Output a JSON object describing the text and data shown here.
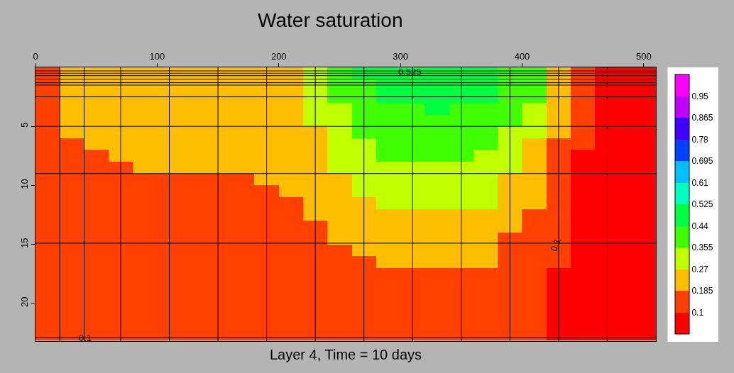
{
  "chart_data": {
    "type": "heatmap",
    "title": "Water saturation",
    "xlabel": "Layer 4, Time = 10 days",
    "x": [
      10,
      30,
      50,
      70,
      90,
      110,
      130,
      150,
      170,
      190,
      210,
      230,
      250,
      270,
      290,
      310,
      330,
      350,
      370,
      390,
      410,
      430,
      450,
      470,
      490,
      505
    ],
    "y": [
      0.5,
      1.5,
      2.5,
      3.5,
      4.5,
      5.5,
      6.5,
      7.5,
      8.5,
      9.5,
      10.5,
      11.5,
      12.5,
      13.5,
      14.5,
      15.5,
      16.5,
      17.5,
      18.5,
      19.5,
      20.5,
      21.5,
      22.6
    ],
    "cells": [
      [
        0.14,
        0.23,
        0.23,
        0.23,
        0.23,
        0.23,
        0.23,
        0.23,
        0.23,
        0.23,
        0.23,
        0.31,
        0.4,
        0.48,
        0.48,
        0.48,
        0.48,
        0.48,
        0.48,
        0.4,
        0.4,
        0.23,
        0.14,
        0.07,
        0.07,
        0.07
      ],
      [
        0.14,
        0.23,
        0.23,
        0.23,
        0.23,
        0.23,
        0.23,
        0.23,
        0.23,
        0.23,
        0.23,
        0.31,
        0.4,
        0.4,
        0.48,
        0.48,
        0.48,
        0.48,
        0.48,
        0.4,
        0.4,
        0.23,
        0.14,
        0.07,
        0.07,
        0.07
      ],
      [
        0.14,
        0.23,
        0.23,
        0.23,
        0.23,
        0.23,
        0.23,
        0.23,
        0.23,
        0.23,
        0.23,
        0.31,
        0.4,
        0.4,
        0.48,
        0.48,
        0.48,
        0.48,
        0.48,
        0.4,
        0.4,
        0.23,
        0.14,
        0.07,
        0.07,
        0.07
      ],
      [
        0.14,
        0.23,
        0.23,
        0.23,
        0.23,
        0.23,
        0.23,
        0.23,
        0.23,
        0.23,
        0.23,
        0.31,
        0.31,
        0.4,
        0.4,
        0.4,
        0.48,
        0.4,
        0.4,
        0.4,
        0.31,
        0.23,
        0.14,
        0.07,
        0.07,
        0.07
      ],
      [
        0.14,
        0.23,
        0.23,
        0.23,
        0.23,
        0.23,
        0.23,
        0.23,
        0.23,
        0.23,
        0.23,
        0.31,
        0.31,
        0.4,
        0.4,
        0.4,
        0.4,
        0.4,
        0.4,
        0.4,
        0.31,
        0.23,
        0.14,
        0.07,
        0.07,
        0.07
      ],
      [
        0.14,
        0.23,
        0.23,
        0.23,
        0.23,
        0.23,
        0.23,
        0.23,
        0.23,
        0.23,
        0.23,
        0.23,
        0.31,
        0.4,
        0.4,
        0.4,
        0.4,
        0.4,
        0.4,
        0.31,
        0.31,
        0.23,
        0.14,
        0.07,
        0.07,
        0.07
      ],
      [
        0.14,
        0.14,
        0.23,
        0.23,
        0.23,
        0.23,
        0.23,
        0.23,
        0.23,
        0.23,
        0.23,
        0.23,
        0.31,
        0.31,
        0.4,
        0.4,
        0.4,
        0.4,
        0.4,
        0.31,
        0.23,
        0.14,
        0.14,
        0.07,
        0.07,
        0.07
      ],
      [
        0.14,
        0.14,
        0.14,
        0.23,
        0.23,
        0.23,
        0.23,
        0.23,
        0.23,
        0.23,
        0.23,
        0.23,
        0.31,
        0.31,
        0.4,
        0.4,
        0.4,
        0.4,
        0.31,
        0.31,
        0.23,
        0.14,
        0.07,
        0.07,
        0.07,
        0.07
      ],
      [
        0.14,
        0.14,
        0.14,
        0.14,
        0.23,
        0.23,
        0.23,
        0.23,
        0.23,
        0.23,
        0.23,
        0.23,
        0.31,
        0.31,
        0.31,
        0.31,
        0.31,
        0.31,
        0.31,
        0.31,
        0.23,
        0.14,
        0.07,
        0.07,
        0.07,
        0.07
      ],
      [
        0.14,
        0.14,
        0.14,
        0.14,
        0.14,
        0.14,
        0.14,
        0.14,
        0.14,
        0.23,
        0.23,
        0.23,
        0.23,
        0.31,
        0.31,
        0.31,
        0.31,
        0.31,
        0.31,
        0.23,
        0.23,
        0.14,
        0.07,
        0.07,
        0.07,
        0.07
      ],
      [
        0.14,
        0.14,
        0.14,
        0.14,
        0.14,
        0.14,
        0.14,
        0.14,
        0.14,
        0.14,
        0.23,
        0.23,
        0.23,
        0.31,
        0.31,
        0.31,
        0.31,
        0.31,
        0.31,
        0.23,
        0.23,
        0.14,
        0.07,
        0.07,
        0.07,
        0.07
      ],
      [
        0.14,
        0.14,
        0.14,
        0.14,
        0.14,
        0.14,
        0.14,
        0.14,
        0.14,
        0.14,
        0.14,
        0.23,
        0.23,
        0.23,
        0.31,
        0.31,
        0.31,
        0.31,
        0.31,
        0.23,
        0.23,
        0.14,
        0.07,
        0.07,
        0.07,
        0.07
      ],
      [
        0.14,
        0.14,
        0.14,
        0.14,
        0.14,
        0.14,
        0.14,
        0.14,
        0.14,
        0.14,
        0.14,
        0.23,
        0.23,
        0.23,
        0.23,
        0.23,
        0.23,
        0.23,
        0.23,
        0.23,
        0.14,
        0.14,
        0.07,
        0.07,
        0.07,
        0.07
      ],
      [
        0.14,
        0.14,
        0.14,
        0.14,
        0.14,
        0.14,
        0.14,
        0.14,
        0.14,
        0.14,
        0.14,
        0.14,
        0.23,
        0.23,
        0.23,
        0.23,
        0.23,
        0.23,
        0.23,
        0.23,
        0.14,
        0.14,
        0.07,
        0.07,
        0.07,
        0.07
      ],
      [
        0.14,
        0.14,
        0.14,
        0.14,
        0.14,
        0.14,
        0.14,
        0.14,
        0.14,
        0.14,
        0.14,
        0.14,
        0.23,
        0.23,
        0.23,
        0.23,
        0.23,
        0.23,
        0.23,
        0.14,
        0.14,
        0.14,
        0.07,
        0.07,
        0.07,
        0.07
      ],
      [
        0.14,
        0.14,
        0.14,
        0.14,
        0.14,
        0.14,
        0.14,
        0.14,
        0.14,
        0.14,
        0.14,
        0.14,
        0.14,
        0.23,
        0.23,
        0.23,
        0.23,
        0.23,
        0.23,
        0.14,
        0.14,
        0.14,
        0.07,
        0.07,
        0.07,
        0.07
      ],
      [
        0.14,
        0.14,
        0.14,
        0.14,
        0.14,
        0.14,
        0.14,
        0.14,
        0.14,
        0.14,
        0.14,
        0.14,
        0.14,
        0.14,
        0.23,
        0.23,
        0.23,
        0.23,
        0.23,
        0.14,
        0.14,
        0.14,
        0.07,
        0.07,
        0.07,
        0.07
      ],
      [
        0.14,
        0.14,
        0.14,
        0.14,
        0.14,
        0.14,
        0.14,
        0.14,
        0.14,
        0.14,
        0.14,
        0.14,
        0.14,
        0.14,
        0.14,
        0.14,
        0.14,
        0.14,
        0.14,
        0.14,
        0.14,
        0.07,
        0.07,
        0.07,
        0.07,
        0.07
      ],
      [
        0.14,
        0.14,
        0.14,
        0.14,
        0.14,
        0.14,
        0.14,
        0.14,
        0.14,
        0.14,
        0.14,
        0.14,
        0.14,
        0.14,
        0.14,
        0.14,
        0.14,
        0.14,
        0.14,
        0.14,
        0.14,
        0.07,
        0.07,
        0.07,
        0.07,
        0.07
      ],
      [
        0.14,
        0.14,
        0.14,
        0.14,
        0.14,
        0.14,
        0.14,
        0.14,
        0.14,
        0.14,
        0.14,
        0.14,
        0.14,
        0.14,
        0.14,
        0.14,
        0.14,
        0.14,
        0.14,
        0.14,
        0.14,
        0.07,
        0.07,
        0.07,
        0.07,
        0.07
      ],
      [
        0.14,
        0.14,
        0.14,
        0.14,
        0.14,
        0.14,
        0.14,
        0.14,
        0.14,
        0.14,
        0.14,
        0.14,
        0.14,
        0.14,
        0.14,
        0.14,
        0.14,
        0.14,
        0.14,
        0.14,
        0.14,
        0.07,
        0.07,
        0.07,
        0.07,
        0.07
      ],
      [
        0.14,
        0.14,
        0.14,
        0.14,
        0.14,
        0.14,
        0.14,
        0.14,
        0.14,
        0.14,
        0.14,
        0.14,
        0.14,
        0.14,
        0.14,
        0.14,
        0.14,
        0.14,
        0.14,
        0.14,
        0.14,
        0.07,
        0.07,
        0.07,
        0.07,
        0.07
      ],
      [
        0.14,
        0.14,
        0.14,
        0.14,
        0.14,
        0.14,
        0.14,
        0.14,
        0.14,
        0.14,
        0.14,
        0.14,
        0.14,
        0.14,
        0.14,
        0.14,
        0.14,
        0.14,
        0.14,
        0.14,
        0.14,
        0.07,
        0.07,
        0.07,
        0.07,
        0.07
      ]
    ],
    "colors": [
      "#ff0000",
      "#ff4000",
      "#ffbf00",
      "#bfff00",
      "#40ff00",
      "#00ff40",
      "#00ffbf",
      "#00bfff",
      "#0040ff",
      "#4000ff",
      "#bf00ff",
      "#ff00ff"
    ],
    "clim": [
      0.015,
      1.035
    ],
    "cticks": [
      0.1,
      0.185,
      0.27,
      0.355,
      0.44,
      0.525,
      0.61,
      0.695,
      0.78,
      0.865,
      0.95
    ],
    "xlim": [
      0,
      510
    ],
    "xticks": [
      0,
      100,
      200,
      300,
      400,
      500
    ],
    "ylim": [
      23.2,
      0
    ],
    "yticks": [
      5,
      10,
      15,
      20
    ],
    "ref_lines": [
      {
        "axis": "x",
        "value": 20
      },
      {
        "axis": "x",
        "value": 40
      },
      {
        "axis": "x",
        "value": 70
      },
      {
        "axis": "x",
        "value": 110
      },
      {
        "axis": "x",
        "value": 150
      },
      {
        "axis": "x",
        "value": 190
      },
      {
        "axis": "x",
        "value": 230
      },
      {
        "axis": "x",
        "value": 270
      },
      {
        "axis": "x",
        "value": 310
      },
      {
        "axis": "x",
        "value": 350
      },
      {
        "axis": "x",
        "value": 390
      },
      {
        "axis": "x",
        "value": 430
      },
      {
        "axis": "x",
        "value": 470
      },
      {
        "axis": "y",
        "value": 0.3
      },
      {
        "axis": "y",
        "value": 0.5
      },
      {
        "axis": "y",
        "value": 0.7
      },
      {
        "axis": "y",
        "value": 1.0
      },
      {
        "axis": "y",
        "value": 1.3
      },
      {
        "axis": "y",
        "value": 1.5
      },
      {
        "axis": "y",
        "value": 2.5
      },
      {
        "axis": "y",
        "value": 5
      },
      {
        "axis": "y",
        "value": 9
      },
      {
        "axis": "y",
        "value": 14.9
      },
      {
        "axis": "y",
        "value": 22.9
      }
    ],
    "annotations": [
      {
        "text": "0.525",
        "x": 308,
        "y": 0.4
      },
      "0.1",
      {
        "text": "0.1",
        "x": 41,
        "y": 22.9
      }
    ]
  }
}
